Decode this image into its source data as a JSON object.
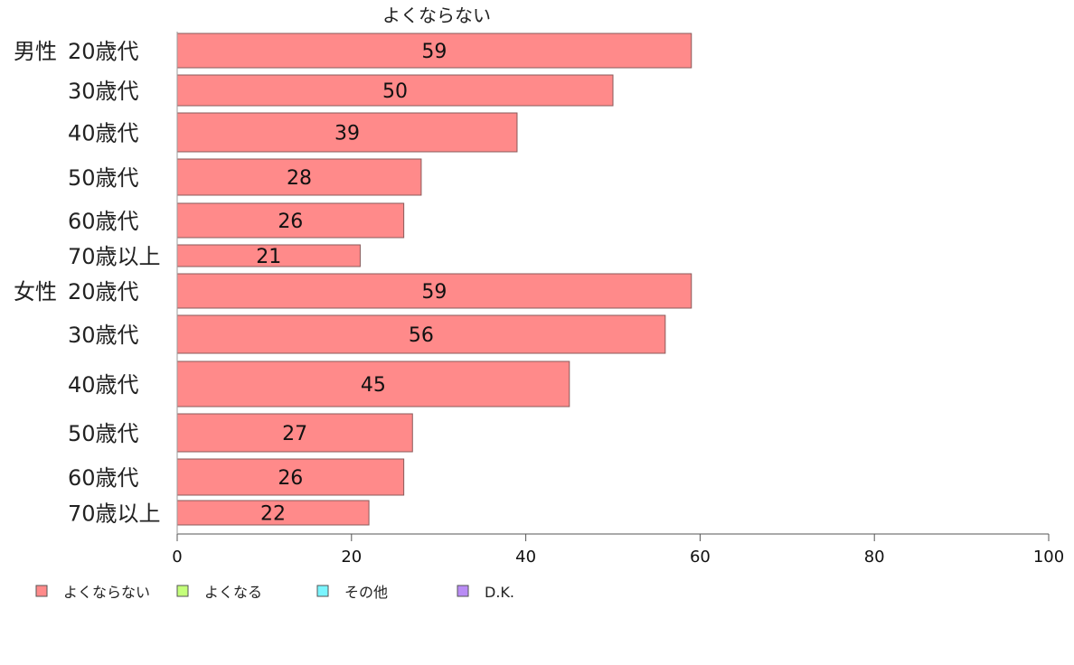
{
  "chart_data": {
    "type": "bar",
    "orientation": "horizontal",
    "title": "よくならない",
    "categories": [
      {
        "group": "男性",
        "label": "20歳代"
      },
      {
        "group": "",
        "label": "30歳代"
      },
      {
        "group": "",
        "label": "40歳代"
      },
      {
        "group": "",
        "label": "50歳代"
      },
      {
        "group": "",
        "label": "60歳代"
      },
      {
        "group": "",
        "label": "70歳以上"
      },
      {
        "group": "女性",
        "label": "20歳代"
      },
      {
        "group": "",
        "label": "30歳代"
      },
      {
        "group": "",
        "label": "40歳代"
      },
      {
        "group": "",
        "label": "50歳代"
      },
      {
        "group": "",
        "label": "60歳代"
      },
      {
        "group": "",
        "label": "70歳以上"
      }
    ],
    "series": [
      {
        "name": "よくならない",
        "color": "#ff8a8a",
        "values": [
          59,
          50,
          39,
          28,
          26,
          21,
          59,
          56,
          45,
          27,
          26,
          22
        ]
      }
    ],
    "xlim": [
      0,
      100
    ],
    "xticks": [
      0,
      20,
      40,
      60,
      80,
      100
    ],
    "grid": false,
    "legend_position": "bottom-left",
    "legend": [
      {
        "label": "よくならない",
        "color": "#ff8a8a"
      },
      {
        "label": "よくなる",
        "color": "#c4ff7a"
      },
      {
        "label": "その他",
        "color": "#7af5ff"
      },
      {
        "label": "D.K.",
        "color": "#b98cf5"
      }
    ]
  }
}
